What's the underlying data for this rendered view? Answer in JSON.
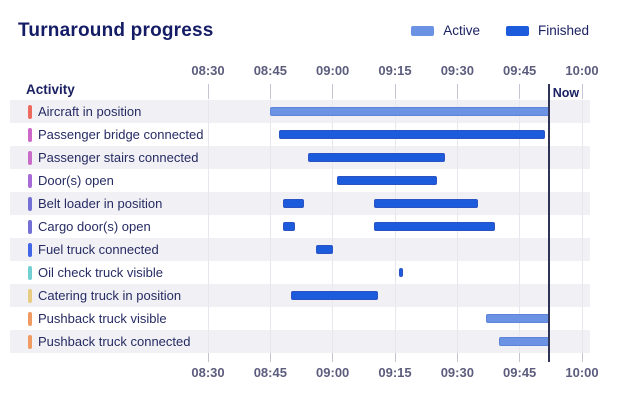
{
  "title": "Turnaround progress",
  "legend": {
    "items": [
      {
        "label": "Active",
        "color": "#6C92E4"
      },
      {
        "label": "Finished",
        "color": "#1C5BDC"
      }
    ]
  },
  "activity_header": "Activity",
  "now_label": "Now",
  "colors": {
    "active": "#6C92E4",
    "finished": "#1C5BDC",
    "now_line": "#2f3457",
    "stripe": "#f1f1f5",
    "gridline": "#e7e7ee"
  },
  "chart_data": {
    "type": "gantt",
    "title": "Turnaround progress",
    "x_axis": {
      "start": "08:30",
      "end": "10:00",
      "ticks": [
        "08:30",
        "08:45",
        "09:00",
        "09:15",
        "09:30",
        "09:45",
        "10:00"
      ],
      "tick_interval_minutes": 15,
      "shown_top_and_bottom": true
    },
    "now": "09:52",
    "legend_position": "top-right",
    "status_colors": {
      "active": "#6C92E4",
      "finished": "#1C5BDC"
    },
    "rows": [
      {
        "label": "Aircraft in position",
        "marker_color": "#ED6A5E",
        "bars": [
          {
            "start": "08:45",
            "end": "09:52",
            "status": "active"
          }
        ]
      },
      {
        "label": "Passenger bridge connected",
        "marker_color": "#CD68C8",
        "bars": [
          {
            "start": "08:47",
            "end": "09:51",
            "status": "finished"
          }
        ]
      },
      {
        "label": "Passenger stairs connected",
        "marker_color": "#C96BC9",
        "bars": [
          {
            "start": "08:54",
            "end": "09:27",
            "status": "finished"
          }
        ]
      },
      {
        "label": "Door(s) open",
        "marker_color": "#A66BD6",
        "bars": [
          {
            "start": "09:01",
            "end": "09:25",
            "status": "finished"
          }
        ]
      },
      {
        "label": "Belt loader in position",
        "marker_color": "#7570D6",
        "bars": [
          {
            "start": "08:48",
            "end": "08:53",
            "status": "finished"
          },
          {
            "start": "09:10",
            "end": "09:35",
            "status": "finished"
          }
        ]
      },
      {
        "label": "Cargo door(s) open",
        "marker_color": "#7570D6",
        "bars": [
          {
            "start": "08:48",
            "end": "08:51",
            "status": "finished"
          },
          {
            "start": "09:10",
            "end": "09:39",
            "status": "finished"
          }
        ]
      },
      {
        "label": "Fuel truck connected",
        "marker_color": "#4166E8",
        "bars": [
          {
            "start": "08:56",
            "end": "09:00",
            "status": "finished"
          }
        ]
      },
      {
        "label": "Oil check truck visible",
        "marker_color": "#72CFD2",
        "bars": [
          {
            "start": "09:16",
            "end": "09:17",
            "status": "finished"
          }
        ]
      },
      {
        "label": "Catering truck in position",
        "marker_color": "#E8CC81",
        "bars": [
          {
            "start": "08:50",
            "end": "09:11",
            "status": "finished"
          }
        ]
      },
      {
        "label": "Pushback truck visible",
        "marker_color": "#F09A62",
        "bars": [
          {
            "start": "09:37",
            "end": "09:52",
            "status": "active"
          }
        ]
      },
      {
        "label": "Pushback truck connected",
        "marker_color": "#F09A62",
        "bars": [
          {
            "start": "09:40",
            "end": "09:52",
            "status": "active"
          }
        ]
      }
    ]
  }
}
